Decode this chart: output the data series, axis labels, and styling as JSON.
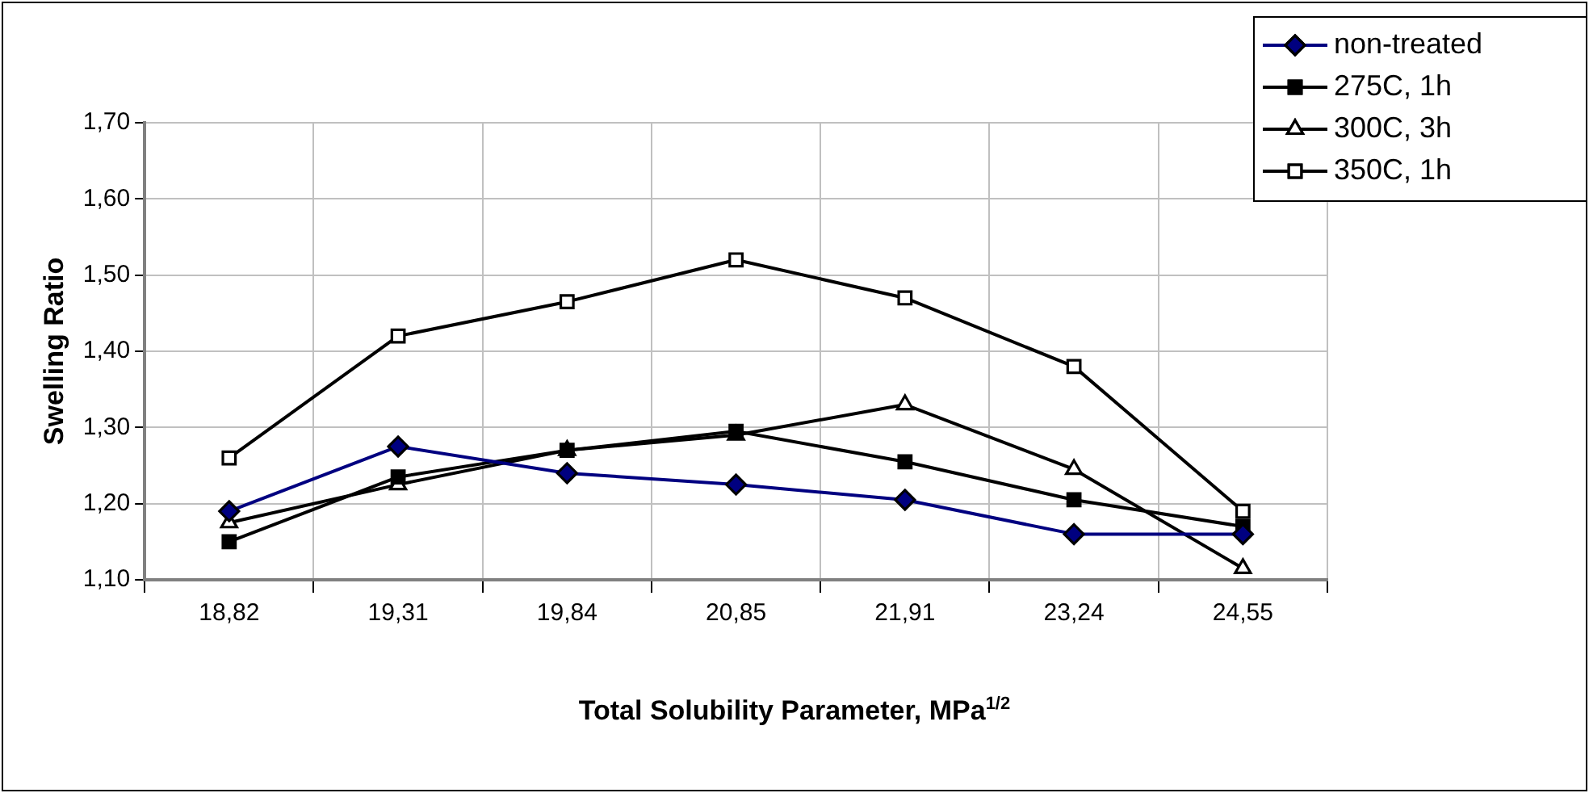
{
  "chart_data": {
    "type": "line",
    "xlabel": "Total Solubility Parameter, MPa$^{1/2}$",
    "ylabel": "Swelling Ratio",
    "categories": [
      "18,82",
      "19,31",
      "19,84",
      "20,85",
      "21,91",
      "23,24",
      "24,55"
    ],
    "ylim": [
      1.1,
      1.7
    ],
    "yticks": [
      {
        "value": 1.1,
        "label": "1,10"
      },
      {
        "value": 1.2,
        "label": "1,20"
      },
      {
        "value": 1.3,
        "label": "1,30"
      },
      {
        "value": 1.4,
        "label": "1,40"
      },
      {
        "value": 1.5,
        "label": "1,50"
      },
      {
        "value": 1.6,
        "label": "1,60"
      },
      {
        "value": 1.7,
        "label": "1,70"
      }
    ],
    "grid": true,
    "legend": "top right",
    "series": [
      {
        "name": "non-treated",
        "color": "#000080",
        "marker": "diamond",
        "values": [
          1.19,
          1.275,
          1.24,
          1.225,
          1.205,
          1.16,
          1.16
        ]
      },
      {
        "name": "275C, 1h",
        "color": "#000000",
        "marker": "square",
        "values": [
          1.15,
          1.235,
          1.27,
          1.295,
          1.255,
          1.205,
          1.17
        ]
      },
      {
        "name": "300C, 3h",
        "color": "#000000",
        "marker": "triangle",
        "values": [
          1.175,
          1.225,
          1.27,
          1.29,
          1.33,
          1.245,
          1.115
        ]
      },
      {
        "name": "350C, 1h",
        "color": "#000000",
        "marker": "square",
        "values": [
          1.26,
          1.42,
          1.465,
          1.52,
          1.47,
          1.38,
          1.19
        ]
      }
    ]
  }
}
